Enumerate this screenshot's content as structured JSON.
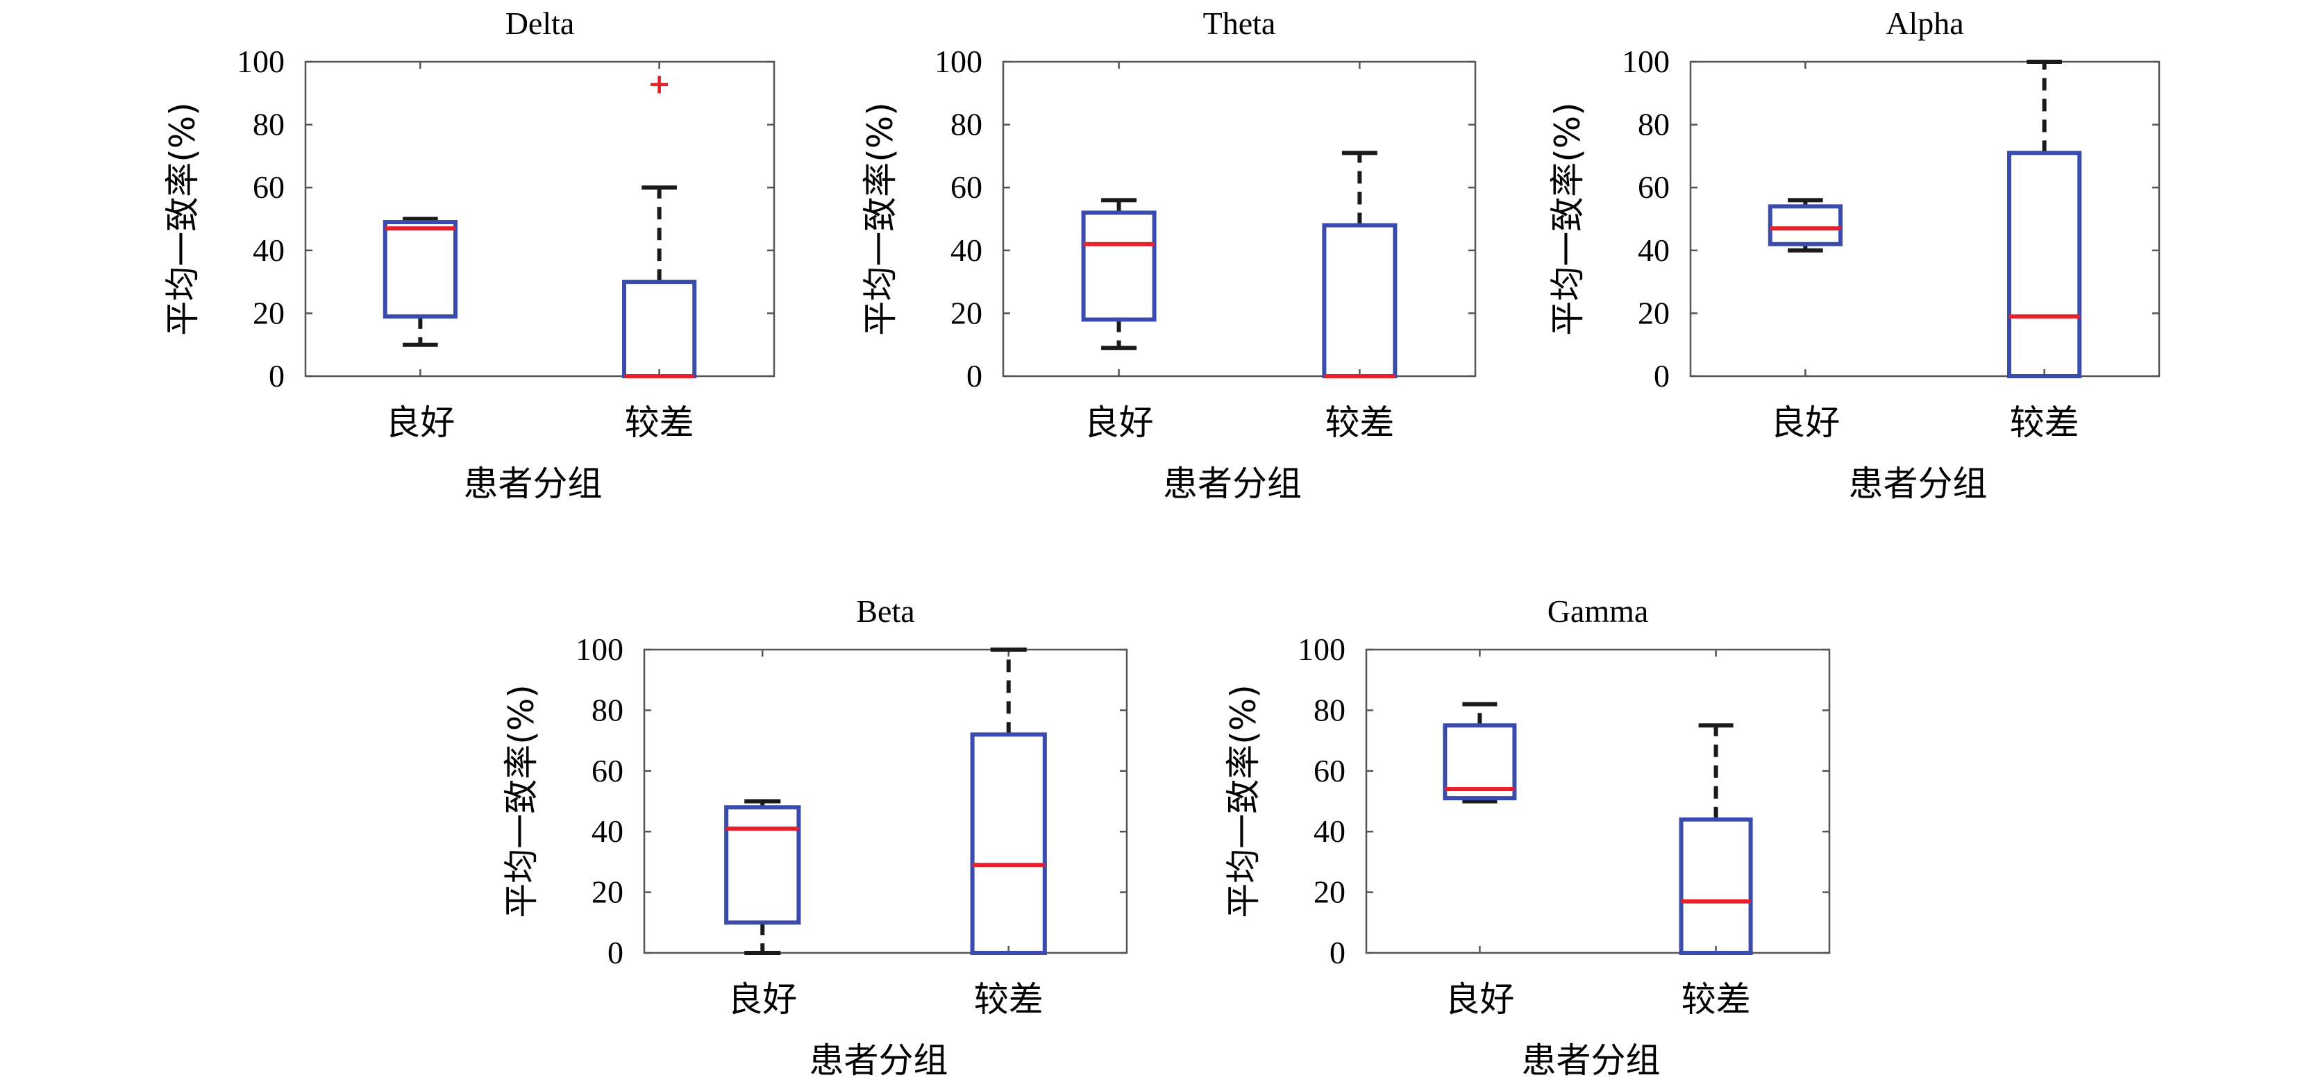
{
  "colors": {
    "box": "#3a4bab",
    "median": "#e8202a",
    "whisker": "#1a1a1a",
    "outlier": "#e8202a"
  },
  "chart_data": [
    {
      "type": "box",
      "title": "Delta",
      "ylabel": "平均一致率(%)",
      "xlabel": "患者分组",
      "ylim": [
        0,
        100
      ],
      "yticks": [
        0,
        20,
        40,
        60,
        80,
        100
      ],
      "categories": [
        "良好",
        "较差"
      ],
      "boxes": [
        {
          "whisker_low": 10,
          "q1": 19,
          "median": 47,
          "q3": 49,
          "whisker_high": 50,
          "outliers": []
        },
        {
          "whisker_low": 0,
          "q1": 0,
          "median": 0,
          "q3": 30,
          "whisker_high": 60,
          "outliers": [
            93
          ]
        }
      ]
    },
    {
      "type": "box",
      "title": "Theta",
      "ylabel": "平均一致率(%)",
      "xlabel": "患者分组",
      "ylim": [
        0,
        100
      ],
      "yticks": [
        0,
        20,
        40,
        60,
        80,
        100
      ],
      "categories": [
        "良好",
        "较差"
      ],
      "boxes": [
        {
          "whisker_low": 9,
          "q1": 18,
          "median": 42,
          "q3": 52,
          "whisker_high": 56,
          "outliers": []
        },
        {
          "whisker_low": 0,
          "q1": 0,
          "median": 0,
          "q3": 48,
          "whisker_high": 71,
          "outliers": []
        }
      ]
    },
    {
      "type": "box",
      "title": "Alpha",
      "ylabel": "平均一致率(%)",
      "xlabel": "患者分组",
      "ylim": [
        0,
        100
      ],
      "yticks": [
        0,
        20,
        40,
        60,
        80,
        100
      ],
      "categories": [
        "良好",
        "较差"
      ],
      "boxes": [
        {
          "whisker_low": 40,
          "q1": 42,
          "median": 47,
          "q3": 54,
          "whisker_high": 56,
          "outliers": []
        },
        {
          "whisker_low": 0,
          "q1": 0,
          "median": 19,
          "q3": 71,
          "whisker_high": 100,
          "outliers": []
        }
      ]
    },
    {
      "type": "box",
      "title": "Beta",
      "ylabel": "平均一致率(%)",
      "xlabel": "患者分组",
      "ylim": [
        0,
        100
      ],
      "yticks": [
        0,
        20,
        40,
        60,
        80,
        100
      ],
      "categories": [
        "良好",
        "较差"
      ],
      "boxes": [
        {
          "whisker_low": 0,
          "q1": 10,
          "median": 41,
          "q3": 48,
          "whisker_high": 50,
          "outliers": []
        },
        {
          "whisker_low": 0,
          "q1": 0,
          "median": 29,
          "q3": 72,
          "whisker_high": 100,
          "outliers": []
        }
      ]
    },
    {
      "type": "box",
      "title": "Gamma",
      "ylabel": "平均一致率(%)",
      "xlabel": "患者分组",
      "ylim": [
        0,
        100
      ],
      "yticks": [
        0,
        20,
        40,
        60,
        80,
        100
      ],
      "categories": [
        "良好",
        "较差"
      ],
      "boxes": [
        {
          "whisker_low": 50,
          "q1": 51,
          "median": 54,
          "q3": 75,
          "whisker_high": 82,
          "outliers": []
        },
        {
          "whisker_low": 0,
          "q1": 0,
          "median": 17,
          "q3": 44,
          "whisker_high": 75,
          "outliers": []
        }
      ]
    }
  ]
}
